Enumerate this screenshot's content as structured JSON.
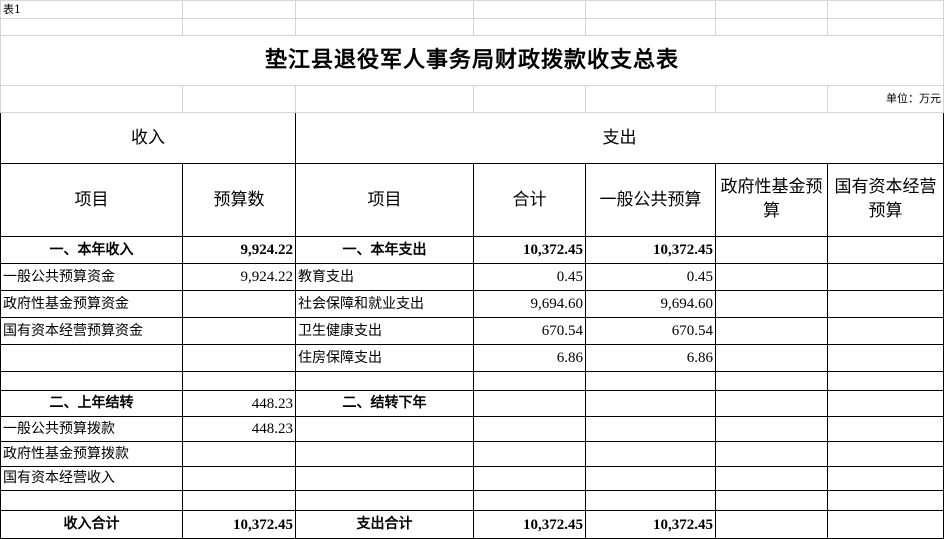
{
  "sheet_label": "表1",
  "title": "垫江县退役军人事务局财政拨款收支总表",
  "unit": "单位：万元",
  "headers": {
    "income": "收入",
    "expense": "支出",
    "income_item": "项目",
    "income_budget": "预算数",
    "expense_item": "项目",
    "expense_total": "合计",
    "expense_general": "一般公共预算",
    "expense_gov_fund": "政府性基金预算",
    "expense_state_capital": "国有资本经营预算"
  },
  "rows": [
    {
      "style": "section",
      "cells": [
        "一、本年收入",
        "9,924.22",
        "一、本年支出",
        "10,372.45",
        "10,372.45",
        "",
        ""
      ]
    },
    {
      "style": "item",
      "cells": [
        "一般公共预算资金",
        "9,924.22",
        "教育支出",
        "0.45",
        "0.45",
        "",
        ""
      ]
    },
    {
      "style": "item",
      "cells": [
        "政府性基金预算资金",
        "",
        "社会保障和就业支出",
        "9,694.60",
        "9,694.60",
        "",
        ""
      ]
    },
    {
      "style": "item",
      "cells": [
        "国有资本经营预算资金",
        "",
        "卫生健康支出",
        "670.54",
        "670.54",
        "",
        ""
      ]
    },
    {
      "style": "item",
      "cells": [
        "",
        "",
        "住房保障支出",
        "6.86",
        "6.86",
        "",
        ""
      ]
    },
    {
      "style": "blank",
      "cells": [
        "",
        "",
        "",
        "",
        "",
        "",
        ""
      ]
    },
    {
      "style": "section2",
      "cells": [
        "二、上年结转",
        "448.23",
        "二、结转下年",
        "",
        "",
        "",
        ""
      ]
    },
    {
      "style": "item",
      "cells": [
        "一般公共预算拨款",
        "448.23",
        "",
        "",
        "",
        "",
        ""
      ]
    },
    {
      "style": "item",
      "cells": [
        "政府性基金预算拨款",
        "",
        "",
        "",
        "",
        "",
        ""
      ]
    },
    {
      "style": "item",
      "cells": [
        "国有资本经营收入",
        "",
        "",
        "",
        "",
        "",
        ""
      ]
    },
    {
      "style": "blank",
      "cells": [
        "",
        "",
        "",
        "",
        "",
        "",
        ""
      ]
    },
    {
      "style": "total",
      "cells": [
        "收入合计",
        "10,372.45",
        "支出合计",
        "10,372.45",
        "10,372.45",
        "",
        ""
      ]
    }
  ]
}
